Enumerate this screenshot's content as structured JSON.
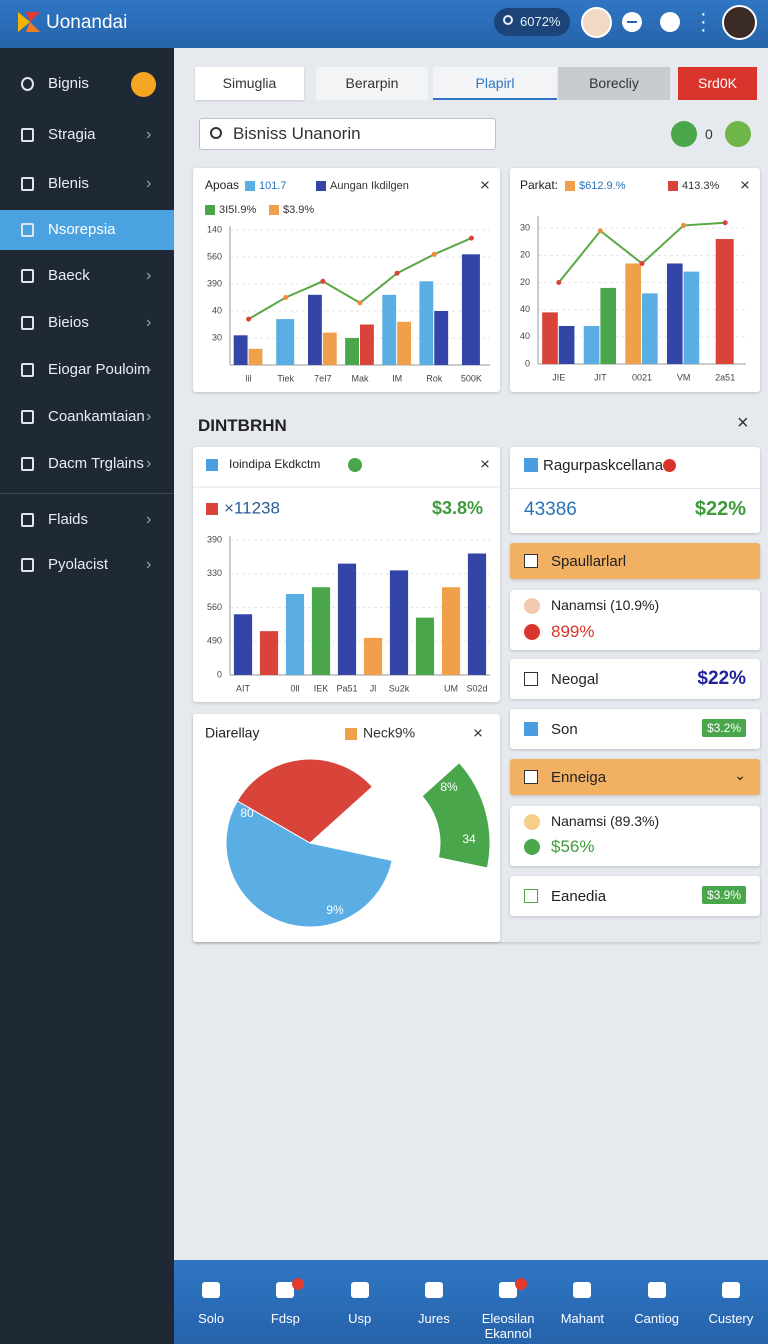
{
  "header": {
    "brand": "Uonandai",
    "search_value": "6072%"
  },
  "sidebar": {
    "items": [
      "Bignis",
      "Stragia",
      "Blenis",
      "Nsorepsia",
      "Baeck",
      "Bieios",
      "Eiogar Pouloim",
      "Coankamtaian",
      "Dacm Trglains",
      "Flaids",
      "Pyolacist"
    ]
  },
  "tabs": [
    "Simuglia",
    "Berarpin",
    "Plapirl",
    "Borecliy",
    "Srd0K"
  ],
  "search": {
    "placeholder": "Bisniss Unanorin",
    "count": "0"
  },
  "section_title": "DINTBRHN",
  "chart_data": [
    {
      "type": "bar",
      "title": "Apoas",
      "categories": [
        "lil",
        "Tiek",
        "7eI7",
        "Mak",
        "IM",
        "Rok",
        "500K"
      ],
      "series": [
        {
          "name": "101.7",
          "color": "#5aaee3",
          "values": [
            null,
            1.7,
            null,
            null,
            2.6,
            3.1,
            null
          ]
        },
        {
          "name": "Aungan Ikdilgen",
          "color": "#3346a8",
          "values": [
            1.1,
            null,
            2.6,
            null,
            null,
            2.0,
            4.1
          ]
        },
        {
          "name": "3I5I.9%",
          "color": "#4aa64a",
          "values": [
            null,
            null,
            null,
            1.0,
            null,
            null,
            null
          ]
        },
        {
          "name": "$3.9%",
          "color": "#f0a04a",
          "values": [
            0.6,
            null,
            1.2,
            null,
            1.6,
            null,
            null
          ]
        },
        {
          "color": "#d9443a",
          "values": [
            null,
            null,
            null,
            1.5,
            null,
            null,
            null
          ]
        }
      ],
      "line": {
        "color": "#5aa845",
        "values": [
          1.7,
          2.5,
          3.1,
          2.3,
          3.4,
          4.1,
          4.7
        ]
      },
      "ylim": [
        0,
        5
      ],
      "yticks": [
        {
          "value": 1,
          "label": "30"
        },
        {
          "value": 2,
          "label": "40"
        },
        {
          "value": 3,
          "label": "390"
        },
        {
          "value": 4,
          "label": "560"
        },
        {
          "value": 5,
          "label": "140"
        }
      ],
      "grid": true
    },
    {
      "type": "bar",
      "title": "Parkat:",
      "categories": [
        "JIE",
        "JIT",
        "0021",
        "VM",
        "2a51"
      ],
      "series": [
        {
          "name": "$612.9.%",
          "color": "#f0a04a",
          "values": [
            null,
            null,
            3.7,
            null,
            null
          ]
        },
        {
          "name": "413.3%",
          "color": "#d9443a",
          "values": [
            1.9,
            null,
            null,
            null,
            4.6
          ]
        },
        {
          "color": "#3346a8",
          "values": [
            1.4,
            null,
            null,
            3.7,
            null
          ]
        },
        {
          "color": "#5aaee3",
          "values": [
            null,
            1.4,
            2.6,
            3.4,
            null
          ]
        },
        {
          "color": "#4aa64a",
          "values": [
            null,
            2.8,
            null,
            null,
            null
          ]
        }
      ],
      "line": {
        "color": "#5aa845",
        "values": [
          3.0,
          4.9,
          3.7,
          5.1,
          5.2
        ]
      },
      "ylim": [
        0,
        5.3
      ],
      "yticks": [
        0,
        {
          "value": 1,
          "label": "40"
        },
        {
          "value": 2,
          "label": "40"
        },
        {
          "value": 3,
          "label": "20"
        },
        {
          "value": 4,
          "label": "20"
        },
        {
          "value": 5,
          "label": "30"
        }
      ],
      "grid": true
    },
    {
      "type": "bar",
      "title": "Ioindipa Ekdkctm",
      "summary_label": "×11238",
      "summary_value": "$3.8%",
      "categories": [
        "AIT",
        null,
        "0ll",
        "IEK",
        "Pa51",
        "Jl",
        "Su2k",
        null,
        "UM",
        "S02d"
      ],
      "values": [
        1.8,
        1.3,
        2.4,
        2.6,
        3.3,
        1.1,
        3.1,
        1.7,
        2.6,
        3.6
      ],
      "colors": [
        "#3346a8",
        "#d9443a",
        "#5aaee3",
        "#4aa64a",
        "#3346a8",
        "#f0a04a",
        "#3346a8",
        "#4aa64a",
        "#f0a04a",
        "#3346a8"
      ],
      "ylim": [
        0,
        4
      ],
      "yticks": [
        0,
        {
          "value": 1,
          "label": "490"
        },
        {
          "value": 2,
          "label": "560"
        },
        {
          "value": 3,
          "label": "330"
        },
        {
          "value": 4,
          "label": "390"
        }
      ],
      "grid": true
    },
    {
      "type": "pie",
      "title": "Diarellay",
      "legend": "Neck9%",
      "legend_color": "#f0a04a",
      "values": [
        30,
        15,
        55
      ],
      "colors": [
        "#d9443a",
        "#4aa64a",
        "#5aaee3"
      ],
      "annotations": [
        "80",
        "9%",
        "8%",
        "34"
      ]
    }
  ],
  "panel": {
    "card": {
      "title": "Ragurpaskcellana",
      "left": "43386",
      "right": "$22%"
    },
    "rows": [
      {
        "label": "Spaullarlarl"
      },
      {
        "label": "Nanamsi (10.9%)",
        "value": "899%"
      },
      {
        "label": "Neogal",
        "value": "$22%"
      },
      {
        "label": "Son",
        "value": "$3.2%"
      },
      {
        "label": "Enneiga"
      },
      {
        "label": "Nanamsi (89.3%)",
        "value": "$56%"
      },
      {
        "label": "Eanedia",
        "value": "$3.9%"
      }
    ]
  },
  "bottom_nav": [
    "Solo",
    "Fdsp",
    "Usp",
    "Jures",
    "Eleosilan Ekannol",
    "Mahant",
    "Cantiog",
    "Custery"
  ]
}
